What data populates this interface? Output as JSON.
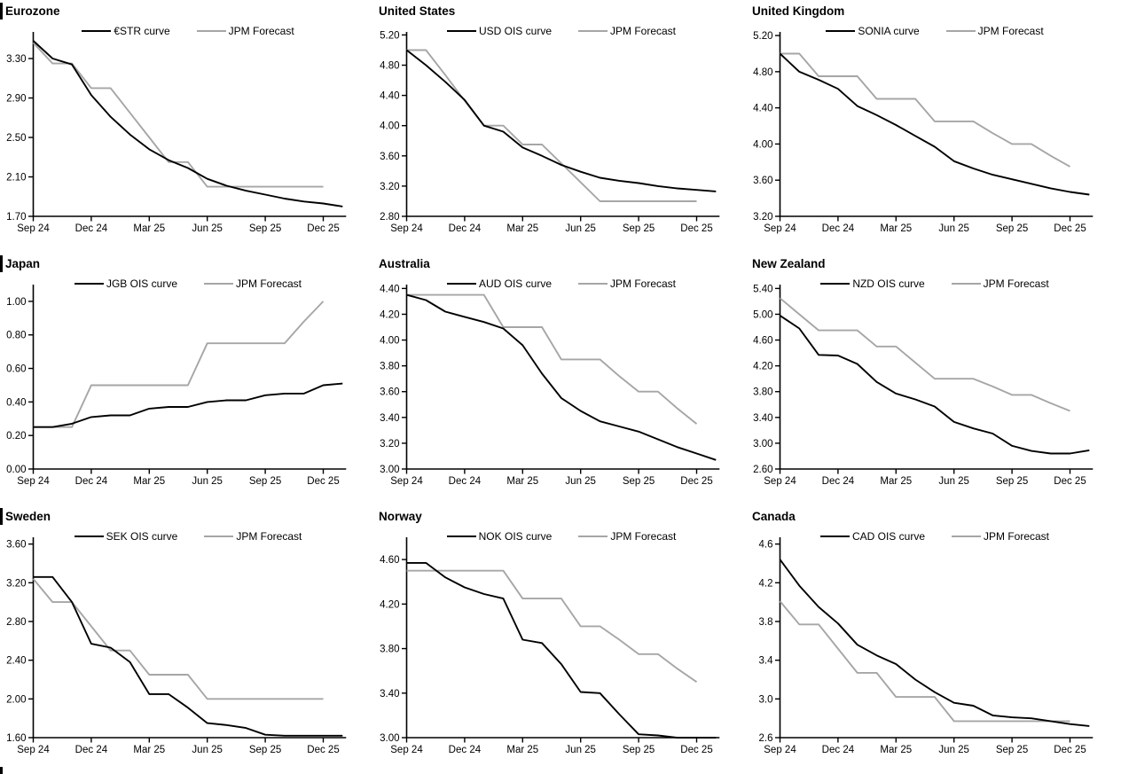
{
  "colors": {
    "curve": "#000000",
    "forecast": "#a6a6a6",
    "axis": "#000000",
    "text": "#000000",
    "background": "#ffffff",
    "section_rule": "#000000"
  },
  "chart_data": {
    "type": "line",
    "x_months": [
      "Sep 24",
      "Oct 24",
      "Nov 24",
      "Dec 24",
      "Jan 25",
      "Feb 25",
      "Mar 25",
      "Apr 25",
      "May 25",
      "Jun 25",
      "Jul 25",
      "Aug 25",
      "Sep 25",
      "Oct 25",
      "Nov 25",
      "Dec 25",
      "Jan 26"
    ],
    "x_axis_tick_labels": [
      "Sep 24",
      "Dec 24",
      "Mar 25",
      "Jun 25",
      "Sep 25",
      "Dec 25"
    ],
    "x_axis_tick_month_index": [
      0,
      3,
      6,
      9,
      12,
      15
    ],
    "legend_position": "top-center",
    "grid": "off",
    "charts": [
      {
        "title": "Eurozone",
        "section_rule": true,
        "legend": {
          "curve_label": "€STR curve",
          "forecast_label": "JPM Forecast"
        },
        "y_tick_labels": [
          "3.30",
          "2.90",
          "2.50",
          "2.10",
          "1.70"
        ],
        "y_tick_values": [
          3.3,
          2.9,
          2.5,
          2.1,
          1.7
        ],
        "ylim": [
          1.7,
          3.57
        ],
        "series": [
          {
            "name": "€STR curve",
            "role": "curve",
            "values": [
              3.48,
              3.3,
              3.24,
              2.93,
              2.71,
              2.53,
              2.38,
              2.27,
              2.19,
              2.08,
              2.01,
              1.96,
              1.92,
              1.88,
              1.85,
              1.83,
              1.8
            ]
          },
          {
            "name": "JPM Forecast",
            "role": "forecast",
            "values": [
              3.46,
              3.25,
              3.25,
              3.0,
              3.0,
              2.75,
              2.5,
              2.25,
              2.25,
              2.0,
              2.0,
              2.0,
              2.0,
              2.0,
              2.0,
              2.0
            ]
          }
        ]
      },
      {
        "title": "United States",
        "section_rule": false,
        "legend": {
          "curve_label": "USD OIS curve",
          "forecast_label": "JPM Forecast"
        },
        "y_tick_labels": [
          "5.20",
          "4.80",
          "4.40",
          "4.00",
          "3.60",
          "3.20",
          "2.80"
        ],
        "y_tick_values": [
          5.2,
          4.8,
          4.4,
          4.0,
          3.6,
          3.2,
          2.8
        ],
        "ylim": [
          2.8,
          5.24
        ],
        "series": [
          {
            "name": "USD OIS curve",
            "role": "curve",
            "values": [
              5.0,
              4.8,
              4.58,
              4.34,
              4.0,
              3.92,
              3.71,
              3.6,
              3.48,
              3.39,
              3.31,
              3.27,
              3.24,
              3.2,
              3.17,
              3.15,
              3.13
            ]
          },
          {
            "name": "JPM Forecast",
            "role": "forecast",
            "values": [
              5.0,
              5.0,
              4.67,
              4.33,
              4.0,
              4.0,
              3.75,
              3.75,
              3.5,
              3.25,
              3.0,
              3.0,
              3.0,
              3.0,
              3.0,
              3.0
            ]
          }
        ]
      },
      {
        "title": "United Kingdom",
        "section_rule": false,
        "legend": {
          "curve_label": "SONIA curve",
          "forecast_label": "JPM Forecast"
        },
        "y_tick_labels": [
          "5.20",
          "4.80",
          "4.40",
          "4.00",
          "3.60",
          "3.20"
        ],
        "y_tick_values": [
          5.2,
          4.8,
          4.4,
          4.0,
          3.6,
          3.2
        ],
        "ylim": [
          3.2,
          5.24
        ],
        "series": [
          {
            "name": "SONIA curve",
            "role": "curve",
            "values": [
              5.0,
              4.8,
              4.71,
              4.61,
              4.42,
              4.32,
              4.21,
              4.09,
              3.97,
              3.81,
              3.73,
              3.66,
              3.61,
              3.56,
              3.51,
              3.47,
              3.44
            ]
          },
          {
            "name": "JPM Forecast",
            "role": "forecast",
            "values": [
              5.0,
              5.0,
              4.75,
              4.75,
              4.75,
              4.5,
              4.5,
              4.5,
              4.25,
              4.25,
              4.25,
              4.12,
              4.0,
              4.0,
              3.87,
              3.75
            ]
          }
        ]
      },
      {
        "title": "Japan",
        "section_rule": true,
        "legend": {
          "curve_label": "JGB OIS curve",
          "forecast_label": "JPM Forecast"
        },
        "y_tick_labels": [
          "1.00",
          "0.80",
          "0.60",
          "0.40",
          "0.20",
          "0.00"
        ],
        "y_tick_values": [
          1.0,
          0.8,
          0.6,
          0.4,
          0.2,
          0.0
        ],
        "ylim": [
          0.0,
          1.1
        ],
        "series": [
          {
            "name": "JGB OIS curve",
            "role": "curve",
            "values": [
              0.25,
              0.25,
              0.27,
              0.31,
              0.32,
              0.32,
              0.36,
              0.37,
              0.37,
              0.4,
              0.41,
              0.41,
              0.44,
              0.45,
              0.45,
              0.5,
              0.51
            ]
          },
          {
            "name": "JPM Forecast",
            "role": "forecast",
            "values": [
              0.25,
              0.25,
              0.25,
              0.5,
              0.5,
              0.5,
              0.5,
              0.5,
              0.5,
              0.75,
              0.75,
              0.75,
              0.75,
              0.75,
              0.88,
              1.0
            ]
          }
        ]
      },
      {
        "title": "Australia",
        "section_rule": false,
        "legend": {
          "curve_label": "AUD OIS curve",
          "forecast_label": "JPM Forecast"
        },
        "y_tick_labels": [
          "4.40",
          "4.20",
          "4.00",
          "3.80",
          "3.60",
          "3.40",
          "3.20",
          "3.00"
        ],
        "y_tick_values": [
          4.4,
          4.2,
          4.0,
          3.8,
          3.6,
          3.4,
          3.2,
          3.0
        ],
        "ylim": [
          3.0,
          4.43
        ],
        "series": [
          {
            "name": "AUD OIS curve",
            "role": "curve",
            "values": [
              4.35,
              4.31,
              4.22,
              4.18,
              4.14,
              4.09,
              3.96,
              3.74,
              3.55,
              3.45,
              3.37,
              3.33,
              3.29,
              3.23,
              3.17,
              3.12,
              3.07
            ]
          },
          {
            "name": "JPM Forecast",
            "role": "forecast",
            "values": [
              4.35,
              4.35,
              4.35,
              4.35,
              4.35,
              4.1,
              4.1,
              4.1,
              3.85,
              3.85,
              3.85,
              3.72,
              3.6,
              3.6,
              3.47,
              3.35
            ]
          }
        ]
      },
      {
        "title": "New Zealand",
        "section_rule": false,
        "legend": {
          "curve_label": "NZD OIS curve",
          "forecast_label": "JPM Forecast"
        },
        "y_tick_labels": [
          "5.40",
          "5.00",
          "4.60",
          "4.20",
          "3.80",
          "3.40",
          "3.00",
          "2.60"
        ],
        "y_tick_values": [
          5.4,
          5.0,
          4.6,
          4.2,
          3.8,
          3.4,
          3.0,
          2.6
        ],
        "ylim": [
          2.6,
          5.46
        ],
        "series": [
          {
            "name": "NZD OIS curve",
            "role": "curve",
            "values": [
              4.98,
              4.78,
              4.37,
              4.36,
              4.23,
              3.95,
              3.77,
              3.68,
              3.57,
              3.33,
              3.23,
              3.15,
              2.96,
              2.88,
              2.84,
              2.84,
              2.89
            ]
          },
          {
            "name": "JPM Forecast",
            "role": "forecast",
            "values": [
              5.25,
              5.0,
              4.75,
              4.75,
              4.75,
              4.5,
              4.5,
              4.25,
              4.0,
              4.0,
              4.0,
              3.88,
              3.75,
              3.75,
              3.62,
              3.5
            ]
          }
        ]
      },
      {
        "title": "Sweden",
        "section_rule": true,
        "legend": {
          "curve_label": "SEK OIS curve",
          "forecast_label": "JPM Forecast"
        },
        "y_tick_labels": [
          "3.60",
          "3.20",
          "2.80",
          "2.40",
          "2.00",
          "1.60"
        ],
        "y_tick_values": [
          3.6,
          3.2,
          2.8,
          2.4,
          2.0,
          1.6
        ],
        "ylim": [
          1.6,
          3.67
        ],
        "series": [
          {
            "name": "SEK OIS curve",
            "role": "curve",
            "values": [
              3.26,
              3.26,
              3.0,
              2.57,
              2.53,
              2.38,
              2.05,
              2.05,
              1.91,
              1.75,
              1.73,
              1.7,
              1.63,
              1.62,
              1.62,
              1.62,
              1.62
            ]
          },
          {
            "name": "JPM Forecast",
            "role": "forecast",
            "values": [
              3.24,
              3.0,
              3.0,
              2.75,
              2.5,
              2.5,
              2.25,
              2.25,
              2.25,
              2.0,
              2.0,
              2.0,
              2.0,
              2.0,
              2.0,
              2.0
            ]
          }
        ]
      },
      {
        "title": "Norway",
        "section_rule": false,
        "legend": {
          "curve_label": "NOK OIS curve",
          "forecast_label": "JPM Forecast"
        },
        "y_tick_labels": [
          "4.60",
          "4.20",
          "3.80",
          "3.40",
          "3.00"
        ],
        "y_tick_values": [
          4.6,
          4.2,
          3.8,
          3.4,
          3.0
        ],
        "ylim": [
          3.0,
          4.8
        ],
        "series": [
          {
            "name": "NOK OIS curve",
            "role": "curve",
            "values": [
              4.57,
              4.57,
              4.44,
              4.35,
              4.29,
              4.25,
              3.88,
              3.85,
              3.66,
              3.41,
              3.4,
              3.21,
              3.03,
              3.02,
              3.0,
              3.0,
              3.0
            ]
          },
          {
            "name": "JPM Forecast",
            "role": "forecast",
            "values": [
              4.5,
              4.5,
              4.5,
              4.5,
              4.5,
              4.5,
              4.25,
              4.25,
              4.25,
              4.0,
              4.0,
              3.88,
              3.75,
              3.75,
              3.62,
              3.5
            ]
          }
        ]
      },
      {
        "title": "Canada",
        "section_rule": false,
        "legend": {
          "curve_label": "CAD OIS curve",
          "forecast_label": "JPM Forecast"
        },
        "y_tick_labels": [
          "4.6",
          "4.2",
          "3.8",
          "3.4",
          "3.0",
          "2.6"
        ],
        "y_tick_values": [
          4.6,
          4.2,
          3.8,
          3.4,
          3.0,
          2.6
        ],
        "ylim": [
          2.6,
          4.67
        ],
        "series": [
          {
            "name": "CAD OIS curve",
            "role": "curve",
            "values": [
              4.44,
              4.17,
              3.95,
              3.78,
              3.56,
              3.45,
              3.36,
              3.2,
              3.07,
              2.96,
              2.93,
              2.83,
              2.81,
              2.8,
              2.77,
              2.74,
              2.72
            ]
          },
          {
            "name": "JPM Forecast",
            "role": "forecast",
            "values": [
              4.01,
              3.77,
              3.77,
              3.52,
              3.27,
              3.27,
              3.02,
              3.02,
              3.02,
              2.77,
              2.77,
              2.77,
              2.77,
              2.77,
              2.77,
              2.77
            ]
          }
        ]
      }
    ]
  }
}
